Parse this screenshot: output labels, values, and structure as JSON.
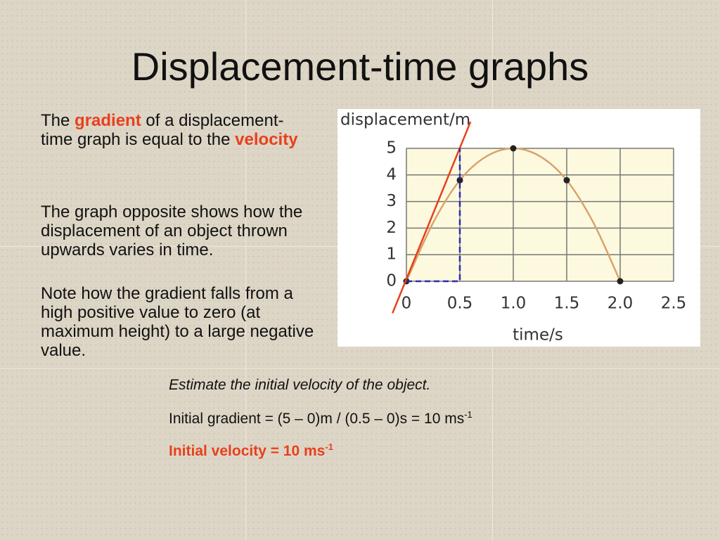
{
  "slide": {
    "title": "Displacement-time graphs",
    "intro": [
      "The ",
      "gradient",
      " of a displacement-time graph is equal to the ",
      "velocity"
    ],
    "paragraphs": [
      "The graph opposite shows how the displacement of an object thrown upwards varies in time.",
      "Note how the gradient falls from a high positive value to zero (at maximum height) to a large negative value."
    ],
    "question": "Estimate the initial velocity of the object.",
    "working": [
      "Initial gradient = (5 – 0)m / (0.5 – 0)s = 10 ms",
      "-1"
    ],
    "answer": [
      "Initial velocity = 10 ms",
      "-1"
    ]
  },
  "chart_data": {
    "type": "line",
    "y_label": "displacement/m",
    "x_label": "time/s",
    "xlim": [
      0,
      2.5
    ],
    "ylim": [
      0,
      5
    ],
    "xticks": [
      0,
      0.5,
      {
        "value": 1,
        "label": "1.0"
      },
      1.5,
      {
        "value": 2,
        "label": "2.0"
      },
      2.5
    ],
    "yticks": [
      0,
      1,
      2,
      3,
      4,
      5
    ],
    "grid": true,
    "series": [
      {
        "color": "#d9a36a",
        "x": [
          0,
          0.25,
          0.5,
          0.75,
          1,
          1.25,
          1.5,
          1.75,
          2
        ],
        "values": [
          0,
          2.2,
          3.8,
          4.7,
          5,
          4.7,
          3.8,
          2.2,
          0
        ],
        "style": "smooth"
      },
      {
        "color": "#222222",
        "x": [
          0,
          0.5,
          1,
          1.5,
          2
        ],
        "values": [
          0,
          3.8,
          5,
          3.8,
          0
        ],
        "style": "points"
      },
      {
        "color": "#e8401c",
        "x": [
          -0.13,
          0.6
        ],
        "values": [
          -1.2,
          6
        ],
        "style": "line"
      },
      {
        "color": "#2a2ab8",
        "x": [
          0,
          0.5,
          0.5
        ],
        "values": [
          0,
          0,
          5
        ],
        "style": "dashed"
      }
    ]
  }
}
